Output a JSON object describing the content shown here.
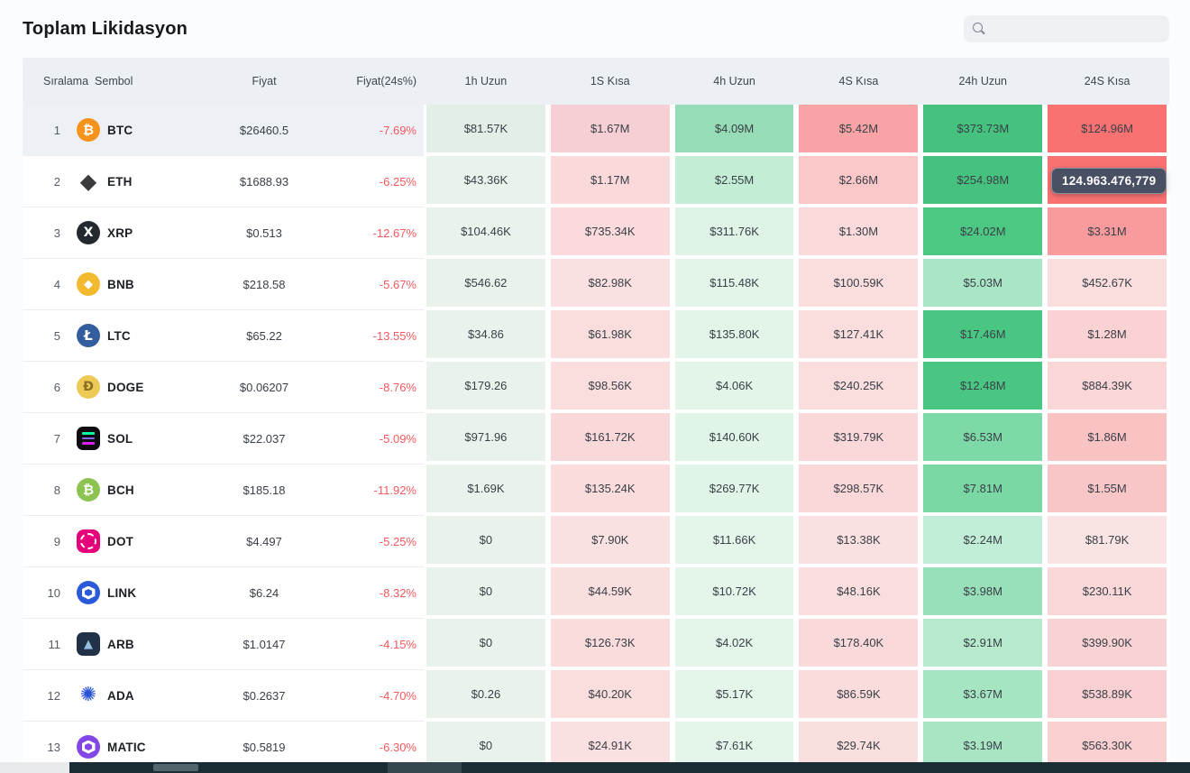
{
  "page": {
    "title": "Toplam Likidasyon"
  },
  "search": {
    "placeholder": "",
    "value": ""
  },
  "colors": {
    "accent_green": "#46c27f",
    "accent_red": "#f97272",
    "pct_red": "#f4595f",
    "header_bg": "#eceff3",
    "tooltip_bg": "#4a5063"
  },
  "tooltip": {
    "text": "124.963.476,779"
  },
  "table": {
    "columns": {
      "rank": "Sıralama",
      "symbol": "Sembol",
      "price": "Fiyat",
      "pct": "Fiyat(24s%)",
      "heat": [
        "1h Uzun",
        "1S Kısa",
        "4h Uzun",
        "4S Kısa",
        "24h Uzun",
        "24S Kısa"
      ]
    },
    "rows": [
      {
        "rank": "1",
        "symbol": "BTC",
        "highlight": true,
        "icon": {
          "type": "circle",
          "bg": "#f7931a",
          "fg": "#ffffff",
          "glyph": "₿",
          "size": 15
        },
        "price": "$26460.5",
        "change": "-7.69%",
        "cells": [
          {
            "value": "$81.57K",
            "bg": "#e3eee7"
          },
          {
            "value": "$1.67M",
            "bg": "#f5cfd3"
          },
          {
            "value": "$4.09M",
            "bg": "#96dcb6"
          },
          {
            "value": "$5.42M",
            "bg": "#f8a4a6"
          },
          {
            "value": "$373.73M",
            "bg": "#46c27f"
          },
          {
            "value": "$124.96M",
            "bg": "#f97272"
          }
        ]
      },
      {
        "rank": "2",
        "symbol": "ETH",
        "highlight": false,
        "icon": {
          "type": "plain",
          "bg": "",
          "fg": "#3b3b3d",
          "glyph": "◆",
          "size": 24
        },
        "price": "$1688.93",
        "change": "-6.25%",
        "cells": [
          {
            "value": "$43.36K",
            "bg": "#e9f3ec"
          },
          {
            "value": "$1.17M",
            "bg": "#f9d9da"
          },
          {
            "value": "$2.55M",
            "bg": "#c3eed5"
          },
          {
            "value": "$2.66M",
            "bg": "#fbc8c9"
          },
          {
            "value": "$254.98M",
            "bg": "#46c27f"
          },
          {
            "value": "",
            "bg": "#f97272"
          }
        ]
      },
      {
        "rank": "3",
        "symbol": "XRP",
        "highlight": false,
        "icon": {
          "type": "circle",
          "bg": "#23292f",
          "fg": "#ffffff",
          "glyph": "X",
          "size": 14
        },
        "price": "$0.513",
        "change": "-12.67%",
        "cells": [
          {
            "value": "$104.46K",
            "bg": "#e9f3ec"
          },
          {
            "value": "$735.34K",
            "bg": "#fadadc"
          },
          {
            "value": "$311.76K",
            "bg": "#def3e5"
          },
          {
            "value": "$1.30M",
            "bg": "#fadadb"
          },
          {
            "value": "$24.02M",
            "bg": "#4cc883"
          },
          {
            "value": "$3.31M",
            "bg": "#f99b9d"
          }
        ]
      },
      {
        "rank": "4",
        "symbol": "BNB",
        "highlight": false,
        "icon": {
          "type": "circle",
          "bg": "#f3ba2f",
          "fg": "#ffffff",
          "glyph": "◆",
          "size": 13
        },
        "price": "$218.58",
        "change": "-5.67%",
        "cells": [
          {
            "value": "$546.62",
            "bg": "#e9f3ec"
          },
          {
            "value": "$82.98K",
            "bg": "#fae0e0"
          },
          {
            "value": "$115.48K",
            "bg": "#e3f5e9"
          },
          {
            "value": "$100.59K",
            "bg": "#fadddd"
          },
          {
            "value": "$5.03M",
            "bg": "#a9e6c5"
          },
          {
            "value": "$452.67K",
            "bg": "#fadede"
          }
        ]
      },
      {
        "rank": "5",
        "symbol": "LTC",
        "highlight": false,
        "icon": {
          "type": "circle",
          "bg": "#345d9d",
          "fg": "#ffffff",
          "glyph": "Ł",
          "size": 15
        },
        "price": "$65.22",
        "change": "-13.55%",
        "cells": [
          {
            "value": "$34.86",
            "bg": "#e9f3ec"
          },
          {
            "value": "$61.98K",
            "bg": "#fadede"
          },
          {
            "value": "$135.80K",
            "bg": "#e3f5e9"
          },
          {
            "value": "$127.41K",
            "bg": "#fadddd"
          },
          {
            "value": "$17.46M",
            "bg": "#49c682"
          },
          {
            "value": "$1.28M",
            "bg": "#fad2d3"
          }
        ]
      },
      {
        "rank": "6",
        "symbol": "DOGE",
        "highlight": false,
        "icon": {
          "type": "circle",
          "bg": "#edca56",
          "fg": "#8c6f24",
          "glyph": "Ð",
          "size": 14
        },
        "price": "$0.06207",
        "change": "-8.76%",
        "cells": [
          {
            "value": "$179.26",
            "bg": "#e9f3ec"
          },
          {
            "value": "$98.56K",
            "bg": "#fadede"
          },
          {
            "value": "$4.06K",
            "bg": "#e3f5e9"
          },
          {
            "value": "$240.25K",
            "bg": "#fadddd"
          },
          {
            "value": "$12.48M",
            "bg": "#49c682"
          },
          {
            "value": "$884.39K",
            "bg": "#fad6d7"
          }
        ]
      },
      {
        "rank": "7",
        "symbol": "SOL",
        "highlight": false,
        "icon": {
          "type": "solbars",
          "bg": "#0c0c11",
          "bar1": "#00ffa3",
          "bar2": "#8569f6",
          "bar3": "#dc1fff"
        },
        "price": "$22.037",
        "change": "-5.09%",
        "cells": [
          {
            "value": "$971.96",
            "bg": "#e9f3ec"
          },
          {
            "value": "$161.72K",
            "bg": "#f9d8d9"
          },
          {
            "value": "$140.60K",
            "bg": "#e0f4e7"
          },
          {
            "value": "$319.79K",
            "bg": "#fad7d8"
          },
          {
            "value": "$6.53M",
            "bg": "#7ed9a8"
          },
          {
            "value": "$1.86M",
            "bg": "#f9c2c3"
          }
        ]
      },
      {
        "rank": "8",
        "symbol": "BCH",
        "highlight": false,
        "icon": {
          "type": "circle",
          "bg": "#8dc351",
          "fg": "#ffffff",
          "glyph": "₿",
          "size": 15
        },
        "price": "$185.18",
        "change": "-11.92%",
        "cells": [
          {
            "value": "$1.69K",
            "bg": "#e9f3ec"
          },
          {
            "value": "$135.24K",
            "bg": "#fadcdc"
          },
          {
            "value": "$269.77K",
            "bg": "#e0f4e7"
          },
          {
            "value": "$298.57K",
            "bg": "#fad8d9"
          },
          {
            "value": "$7.81M",
            "bg": "#7bd8a5"
          },
          {
            "value": "$1.55M",
            "bg": "#f9c6c7"
          }
        ]
      },
      {
        "rank": "9",
        "symbol": "DOT",
        "highlight": false,
        "icon": {
          "type": "dotring",
          "bg": "#e6007a"
        },
        "price": "$4.497",
        "change": "-5.25%",
        "cells": [
          {
            "value": "$0",
            "bg": "#e9f3ec"
          },
          {
            "value": "$7.90K",
            "bg": "#fae1e1"
          },
          {
            "value": "$11.66K",
            "bg": "#e4f5ea"
          },
          {
            "value": "$13.38K",
            "bg": "#fae0e0"
          },
          {
            "value": "$2.24M",
            "bg": "#c2edd6"
          },
          {
            "value": "$81.79K",
            "bg": "#fae3e3"
          }
        ]
      },
      {
        "rank": "10",
        "symbol": "LINK",
        "highlight": false,
        "icon": {
          "type": "hexring",
          "bg": "#2a5ada",
          "ring": "#ffffff"
        },
        "price": "$6.24",
        "change": "-8.32%",
        "cells": [
          {
            "value": "$0",
            "bg": "#e9f3ec"
          },
          {
            "value": "$44.59K",
            "bg": "#fadfdf"
          },
          {
            "value": "$10.72K",
            "bg": "#e4f5ea"
          },
          {
            "value": "$48.16K",
            "bg": "#fadedf"
          },
          {
            "value": "$3.98M",
            "bg": "#98e0ba"
          },
          {
            "value": "$230.11K",
            "bg": "#fad8d9"
          }
        ]
      },
      {
        "rank": "11",
        "symbol": "ARB",
        "highlight": false,
        "icon": {
          "type": "square",
          "bg": "#213147",
          "fg": "#96bedc",
          "glyph": "▲",
          "size": 13
        },
        "price": "$1.0147",
        "change": "-4.15%",
        "cells": [
          {
            "value": "$0",
            "bg": "#e9f3ec"
          },
          {
            "value": "$126.73K",
            "bg": "#fadcdd"
          },
          {
            "value": "$4.02K",
            "bg": "#e4f5ea"
          },
          {
            "value": "$178.40K",
            "bg": "#fad9da"
          },
          {
            "value": "$2.91M",
            "bg": "#b7eacc"
          },
          {
            "value": "$399.90K",
            "bg": "#f9d3d4"
          }
        ]
      },
      {
        "rank": "12",
        "symbol": "ADA",
        "highlight": false,
        "icon": {
          "type": "plain",
          "bg": "",
          "fg": "#2a53d8",
          "glyph": "✺",
          "size": 22
        },
        "price": "$0.2637",
        "change": "-4.70%",
        "cells": [
          {
            "value": "$0.26",
            "bg": "#e9f3ec"
          },
          {
            "value": "$40.20K",
            "bg": "#fadede"
          },
          {
            "value": "$5.17K",
            "bg": "#e4f5ea"
          },
          {
            "value": "$86.59K",
            "bg": "#fadcdd"
          },
          {
            "value": "$3.67M",
            "bg": "#a6e5c2"
          },
          {
            "value": "$538.89K",
            "bg": "#f9d0d1"
          }
        ]
      },
      {
        "rank": "13",
        "symbol": "MATIC",
        "highlight": false,
        "icon": {
          "type": "hexring",
          "bg": "#8247e5",
          "ring": "#ffffff"
        },
        "price": "$0.5819",
        "change": "-6.30%",
        "cells": [
          {
            "value": "$0",
            "bg": "#e9f3ec"
          },
          {
            "value": "$24.91K",
            "bg": "#fae0e0"
          },
          {
            "value": "$7.61K",
            "bg": "#e4f5ea"
          },
          {
            "value": "$29.74K",
            "bg": "#fadfdf"
          },
          {
            "value": "$3.19M",
            "bg": "#a8e5c3"
          },
          {
            "value": "$563.30K",
            "bg": "#f9cfd0"
          }
        ]
      }
    ]
  }
}
